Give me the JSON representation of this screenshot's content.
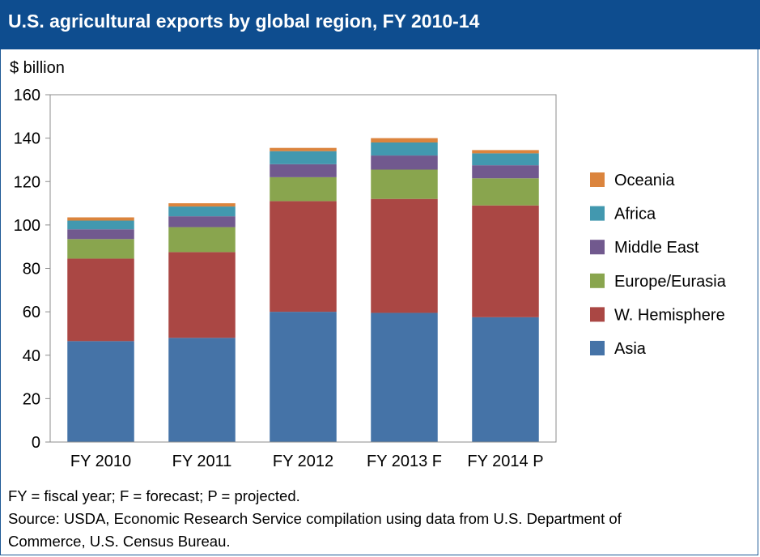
{
  "header": {
    "title": "U.S. agricultural exports by global region, FY 2010-14"
  },
  "chart_data": {
    "type": "bar",
    "stacked": true,
    "ylabel": "$ billion",
    "ylim": [
      0,
      160
    ],
    "yticks": [
      0,
      20,
      40,
      60,
      80,
      100,
      120,
      140,
      160
    ],
    "grid": false,
    "legend": "right",
    "categories": [
      "FY 2010",
      "FY 2011",
      "FY 2012",
      "FY 2013 F",
      "FY 2014 P"
    ],
    "series": [
      {
        "name": "Asia",
        "color": "#4573a7",
        "values": [
          46.5,
          48,
          60,
          59.5,
          57.5
        ]
      },
      {
        "name": "W. Hemisphere",
        "color": "#aa4744",
        "values": [
          38,
          39.5,
          51,
          52.5,
          51.5
        ]
      },
      {
        "name": "Europe/Eurasia",
        "color": "#89a54e",
        "values": [
          9,
          11.5,
          11,
          13.5,
          12.5
        ]
      },
      {
        "name": "Middle East",
        "color": "#71598e",
        "values": [
          4.5,
          5,
          6,
          6.5,
          6
        ]
      },
      {
        "name": "Africa",
        "color": "#4298af",
        "values": [
          4,
          4.5,
          6,
          6,
          5.5
        ]
      },
      {
        "name": "Oceania",
        "color": "#db843d",
        "values": [
          1.5,
          1.5,
          1.5,
          2,
          1.5
        ]
      }
    ]
  },
  "notes": {
    "line1": "FY = fiscal year; F = forecast; P = projected.",
    "line2": "Source: USDA, Economic Research Service compilation using data from U.S. Department of",
    "line3": "Commerce, U.S. Census Bureau."
  }
}
